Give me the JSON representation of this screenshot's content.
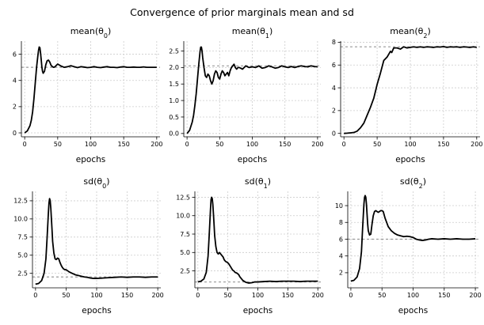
{
  "figure": {
    "suptitle": "Convergence of prior marginals mean and sd"
  },
  "chart_data": [
    {
      "type": "line",
      "title": "mean(θ0)",
      "title_base": "mean(θ",
      "title_sub": "0",
      "title_end": ")",
      "xlabel": "epochs",
      "ylabel": "",
      "xlim": [
        -5,
        205
      ],
      "ylim": [
        -0.3,
        7.0
      ],
      "xticks": [
        0,
        50,
        100,
        150,
        200
      ],
      "yticks": [
        0,
        2,
        4,
        6
      ],
      "target": 5.0,
      "series": [
        {
          "x": [
            0,
            4,
            8,
            10,
            12,
            14,
            16,
            18,
            20,
            21,
            22,
            23,
            24,
            25,
            26,
            27,
            28,
            30,
            32,
            34,
            36,
            38,
            40,
            42,
            44,
            46,
            48,
            50,
            55,
            60,
            65,
            70,
            75,
            80,
            85,
            90,
            95,
            100,
            105,
            110,
            115,
            120,
            125,
            130,
            135,
            140,
            145,
            150,
            155,
            160,
            165,
            170,
            175,
            180,
            185,
            190,
            195,
            200
          ],
          "y": [
            0,
            0.15,
            0.55,
            0.95,
            1.6,
            2.6,
            3.8,
            5.0,
            5.9,
            6.3,
            6.55,
            6.5,
            6.1,
            5.6,
            5.05,
            4.7,
            4.55,
            4.7,
            5.2,
            5.5,
            5.55,
            5.4,
            5.15,
            5.05,
            5.0,
            5.05,
            5.15,
            5.25,
            5.1,
            5.0,
            5.05,
            5.12,
            5.05,
            4.98,
            5.05,
            5.02,
            4.98,
            5.0,
            5.05,
            5.0,
            4.98,
            5.02,
            5.05,
            5.0,
            5.0,
            4.98,
            5.02,
            5.05,
            5.0,
            5.0,
            5.02,
            5.0,
            5.0,
            5.03,
            5.0,
            5.0,
            5.0,
            5.0
          ]
        }
      ]
    },
    {
      "type": "line",
      "title": "mean(θ1)",
      "title_base": "mean(θ",
      "title_sub": "1",
      "title_end": ")",
      "xlabel": "epochs",
      "ylabel": "",
      "xlim": [
        -5,
        205
      ],
      "ylim": [
        -0.1,
        2.8
      ],
      "xticks": [
        0,
        50,
        100,
        150,
        200
      ],
      "yticks": [
        0.0,
        0.5,
        1.0,
        1.5,
        2.0,
        2.5
      ],
      "target": 2.05,
      "series": [
        {
          "x": [
            0,
            4,
            8,
            10,
            12,
            14,
            16,
            18,
            20,
            21,
            22,
            23,
            24,
            26,
            28,
            30,
            32,
            34,
            36,
            38,
            40,
            42,
            44,
            46,
            48,
            50,
            52,
            54,
            56,
            58,
            60,
            62,
            64,
            66,
            68,
            70,
            72,
            74,
            76,
            78,
            80,
            85,
            90,
            95,
            100,
            105,
            110,
            115,
            120,
            125,
            130,
            135,
            140,
            145,
            150,
            155,
            160,
            165,
            170,
            175,
            180,
            185,
            190,
            195,
            200
          ],
          "y": [
            0,
            0.1,
            0.35,
            0.55,
            0.85,
            1.2,
            1.65,
            2.1,
            2.5,
            2.62,
            2.62,
            2.5,
            2.3,
            2.0,
            1.75,
            1.7,
            1.8,
            1.75,
            1.6,
            1.5,
            1.6,
            1.8,
            1.9,
            1.85,
            1.7,
            1.65,
            1.8,
            1.9,
            1.85,
            1.75,
            1.8,
            1.85,
            1.75,
            1.9,
            2.0,
            2.05,
            2.1,
            2.0,
            1.95,
            2.0,
            2.0,
            1.95,
            2.05,
            2.0,
            2.02,
            2.0,
            2.05,
            1.98,
            2.0,
            2.05,
            2.02,
            1.98,
            2.0,
            2.05,
            2.02,
            2.0,
            2.03,
            2.0,
            2.03,
            2.05,
            2.03,
            2.02,
            2.05,
            2.03,
            2.02
          ]
        }
      ]
    },
    {
      "type": "line",
      "title": "mean(θ2)",
      "title_base": "mean(θ",
      "title_sub": "2",
      "title_end": ")",
      "xlabel": "epochs",
      "ylabel": "",
      "xlim": [
        -5,
        205
      ],
      "ylim": [
        -0.3,
        8.1
      ],
      "xticks": [
        0,
        50,
        100,
        150,
        200
      ],
      "yticks": [
        0,
        2,
        4,
        6,
        8
      ],
      "target": 7.6,
      "series": [
        {
          "x": [
            0,
            5,
            10,
            15,
            20,
            25,
            30,
            35,
            40,
            45,
            50,
            55,
            60,
            65,
            70,
            72,
            75,
            80,
            85,
            90,
            95,
            100,
            105,
            110,
            115,
            120,
            125,
            130,
            135,
            140,
            145,
            150,
            155,
            160,
            165,
            170,
            175,
            180,
            185,
            190,
            195,
            200
          ],
          "y": [
            0,
            0.02,
            0.05,
            0.08,
            0.2,
            0.5,
            0.9,
            1.6,
            2.3,
            3.1,
            4.3,
            5.3,
            6.4,
            6.7,
            7.2,
            7.1,
            7.5,
            7.5,
            7.4,
            7.6,
            7.5,
            7.55,
            7.6,
            7.55,
            7.6,
            7.55,
            7.6,
            7.58,
            7.55,
            7.6,
            7.58,
            7.62,
            7.55,
            7.6,
            7.58,
            7.6,
            7.55,
            7.6,
            7.58,
            7.55,
            7.6,
            7.55
          ]
        }
      ]
    },
    {
      "type": "line",
      "title": "sd(θ0)",
      "title_base": "sd(θ",
      "title_sub": "0",
      "title_end": ")",
      "xlabel": "epochs",
      "ylabel": "",
      "xlim": [
        -5,
        205
      ],
      "ylim": [
        0.5,
        13.8
      ],
      "xticks": [
        0,
        50,
        100,
        150,
        200
      ],
      "yticks": [
        2.5,
        5.0,
        7.5,
        10.0,
        12.5
      ],
      "target": 2.0,
      "series": [
        {
          "x": [
            0,
            5,
            10,
            14,
            17,
            19,
            21,
            22,
            23,
            24,
            25,
            26,
            27,
            28,
            30,
            32,
            34,
            36,
            38,
            40,
            42,
            44,
            46,
            48,
            50,
            55,
            60,
            65,
            70,
            75,
            80,
            85,
            90,
            95,
            100,
            105,
            110,
            120,
            130,
            140,
            150,
            160,
            170,
            180,
            190,
            200
          ],
          "y": [
            1.0,
            1.1,
            1.5,
            2.5,
            4.5,
            7.5,
            10.8,
            12.2,
            12.8,
            12.5,
            11.5,
            10.0,
            8.5,
            6.9,
            5.3,
            4.5,
            4.4,
            4.6,
            4.5,
            4.0,
            3.6,
            3.3,
            3.1,
            3.0,
            3.0,
            2.7,
            2.5,
            2.3,
            2.2,
            2.1,
            2.0,
            1.95,
            1.85,
            1.8,
            1.8,
            1.82,
            1.85,
            1.9,
            1.95,
            2.0,
            1.95,
            2.0,
            2.0,
            1.95,
            2.0,
            2.0
          ]
        }
      ]
    },
    {
      "type": "line",
      "title": "sd(θ1)",
      "title_base": "sd(θ",
      "title_sub": "1",
      "title_end": ")",
      "xlabel": "epochs",
      "ylabel": "",
      "xlim": [
        -5,
        205
      ],
      "ylim": [
        0.2,
        13.3
      ],
      "xticks": [
        0,
        50,
        100,
        150,
        200
      ],
      "yticks": [
        2.5,
        5.0,
        7.5,
        10.0,
        12.5
      ],
      "target": 1.0,
      "series": [
        {
          "x": [
            0,
            5,
            10,
            14,
            17,
            19,
            21,
            22,
            23,
            24,
            25,
            26,
            27,
            28,
            30,
            32,
            34,
            36,
            38,
            40,
            42,
            44,
            46,
            48,
            50,
            52,
            55,
            58,
            60,
            62,
            65,
            68,
            70,
            75,
            80,
            85,
            90,
            95,
            100,
            110,
            120,
            130,
            140,
            150,
            160,
            170,
            180,
            190,
            200
          ],
          "y": [
            1.0,
            1.1,
            1.4,
            2.3,
            4.5,
            7.5,
            10.8,
            12.2,
            12.5,
            12.3,
            11.5,
            10.2,
            8.8,
            7.3,
            5.8,
            5.0,
            4.8,
            5.0,
            4.8,
            4.6,
            4.4,
            4.0,
            3.8,
            3.7,
            3.6,
            3.4,
            3.0,
            2.6,
            2.5,
            2.3,
            2.2,
            2.0,
            1.7,
            1.2,
            0.95,
            0.85,
            0.9,
            1.0,
            1.0,
            1.05,
            1.1,
            1.05,
            1.1,
            1.1,
            1.1,
            1.05,
            1.1,
            1.1,
            1.1
          ]
        }
      ]
    },
    {
      "type": "line",
      "title": "sd(θ2)",
      "title_base": "sd(θ",
      "title_sub": "2",
      "title_end": ")",
      "xlabel": "epochs",
      "ylabel": "",
      "xlim": [
        -5,
        205
      ],
      "ylim": [
        0.2,
        11.7
      ],
      "xticks": [
        0,
        50,
        100,
        150,
        200
      ],
      "yticks": [
        2,
        4,
        6,
        8,
        10
      ],
      "target": 6.0,
      "series": [
        {
          "x": [
            0,
            5,
            10,
            14,
            17,
            19,
            21,
            22,
            23,
            24,
            25,
            26,
            27,
            28,
            30,
            32,
            34,
            36,
            38,
            40,
            42,
            44,
            46,
            48,
            50,
            52,
            55,
            58,
            60,
            62,
            65,
            70,
            75,
            80,
            85,
            90,
            95,
            100,
            105,
            110,
            115,
            120,
            125,
            130,
            140,
            150,
            160,
            170,
            180,
            190,
            200
          ],
          "y": [
            1.0,
            1.1,
            1.5,
            2.5,
            4.5,
            7.5,
            10.2,
            11.0,
            11.2,
            11.0,
            10.2,
            9.0,
            7.8,
            7.0,
            6.5,
            6.6,
            7.8,
            8.8,
            9.3,
            9.4,
            9.3,
            9.2,
            9.3,
            9.4,
            9.4,
            9.3,
            8.5,
            7.9,
            7.5,
            7.3,
            7.0,
            6.7,
            6.5,
            6.4,
            6.3,
            6.35,
            6.3,
            6.2,
            6.0,
            5.9,
            5.85,
            5.9,
            6.0,
            6.05,
            6.0,
            6.05,
            6.0,
            6.05,
            6.0,
            6.0,
            6.05
          ]
        }
      ]
    }
  ]
}
